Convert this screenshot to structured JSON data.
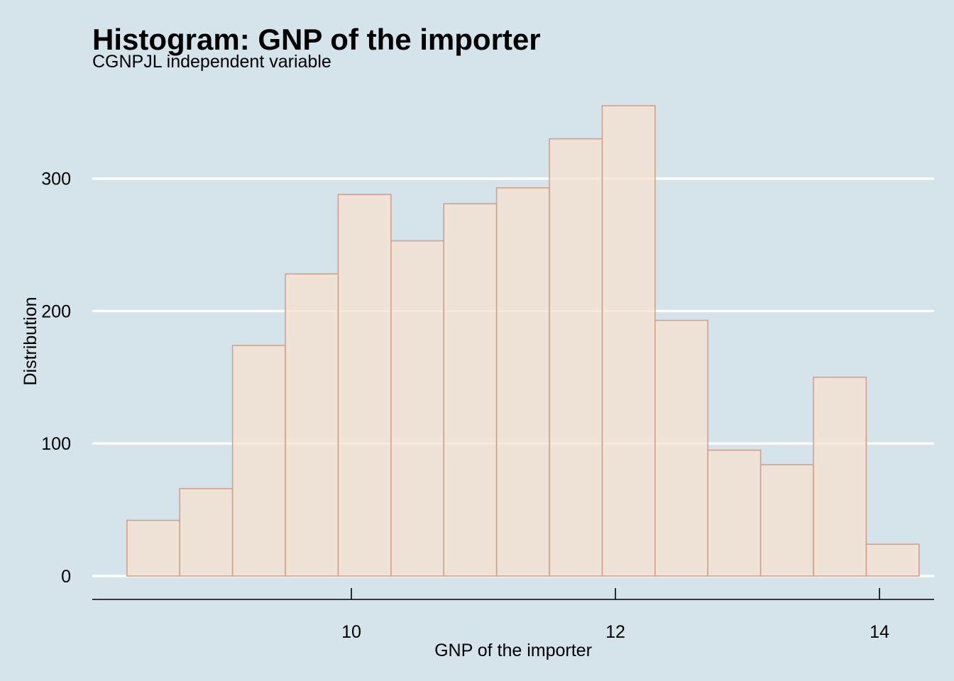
{
  "chart_data": {
    "type": "bar",
    "title": "Histogram: GNP of the importer",
    "subtitle": "CGNPJL independent variable",
    "xlabel": "GNP of the importer",
    "ylabel": "Distribution",
    "x_ticks": [
      10,
      12,
      14
    ],
    "y_ticks": [
      0,
      100,
      200,
      300
    ],
    "xlim": [
      8.0,
      14.4
    ],
    "ylim": [
      0,
      355
    ],
    "grid": "horizontal",
    "bins": [
      {
        "x0": 8.3,
        "x1": 8.7,
        "count": 42
      },
      {
        "x0": 8.7,
        "x1": 9.1,
        "count": 66
      },
      {
        "x0": 9.1,
        "x1": 9.5,
        "count": 174
      },
      {
        "x0": 9.5,
        "x1": 9.9,
        "count": 228
      },
      {
        "x0": 9.9,
        "x1": 10.3,
        "count": 288
      },
      {
        "x0": 10.3,
        "x1": 10.7,
        "count": 253
      },
      {
        "x0": 10.7,
        "x1": 11.1,
        "count": 281
      },
      {
        "x0": 11.1,
        "x1": 11.5,
        "count": 293
      },
      {
        "x0": 11.5,
        "x1": 11.9,
        "count": 330
      },
      {
        "x0": 11.9,
        "x1": 12.3,
        "count": 355
      },
      {
        "x0": 12.3,
        "x1": 12.7,
        "count": 193
      },
      {
        "x0": 12.7,
        "x1": 13.1,
        "count": 95
      },
      {
        "x0": 13.1,
        "x1": 13.5,
        "count": 84
      },
      {
        "x0": 13.5,
        "x1": 13.9,
        "count": 150
      },
      {
        "x0": 13.9,
        "x1": 14.3,
        "count": 24
      }
    ],
    "colors": {
      "background": "#d5e4eb",
      "bar_fill": "#f7e2d0",
      "bar_stroke": "#d4a08a",
      "grid": "#ffffff",
      "axis": "#000000"
    }
  }
}
